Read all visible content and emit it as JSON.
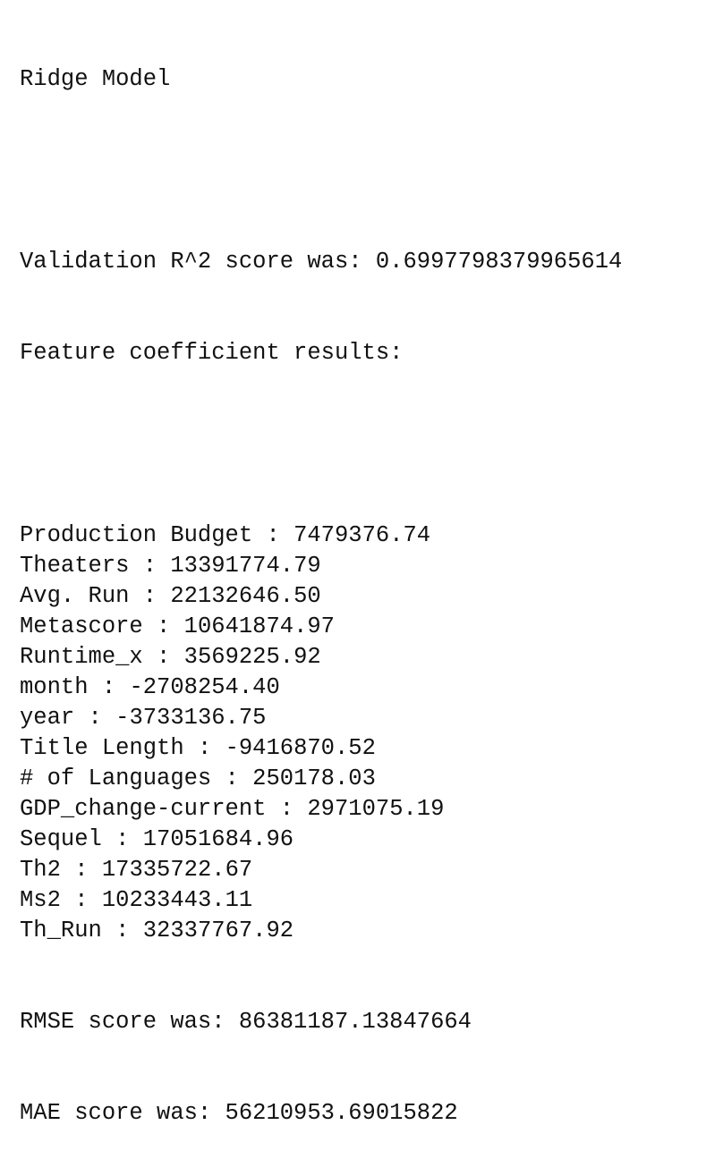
{
  "output": {
    "title": "Ridge Model",
    "validation_line": "Validation R^2 score was: 0.6997798379965614",
    "coef_header": "Feature coefficient results:",
    "coefficients": [
      {
        "feature": "Production Budget",
        "value": "7479376.74"
      },
      {
        "feature": "Theaters",
        "value": "13391774.79"
      },
      {
        "feature": "Avg. Run",
        "value": "22132646.50"
      },
      {
        "feature": "Metascore",
        "value": "10641874.97"
      },
      {
        "feature": "Runtime_x",
        "value": "3569225.92"
      },
      {
        "feature": "month",
        "value": "-2708254.40"
      },
      {
        "feature": "year",
        "value": "-3733136.75"
      },
      {
        "feature": "Title Length",
        "value": "-9416870.52"
      },
      {
        "feature": "# of Languages",
        "value": "250178.03"
      },
      {
        "feature": "GDP_change-current",
        "value": "2971075.19"
      },
      {
        "feature": "Sequel",
        "value": "17051684.96"
      },
      {
        "feature": "Th2",
        "value": "17335722.67"
      },
      {
        "feature": "Ms2",
        "value": "10233443.11"
      },
      {
        "feature": "Th_Run",
        "value": "32337767.92"
      }
    ],
    "separator": " : ",
    "rmse_line": "RMSE score was: 86381187.13847664",
    "mae_line": "MAE score was: 56210953.69015822"
  }
}
